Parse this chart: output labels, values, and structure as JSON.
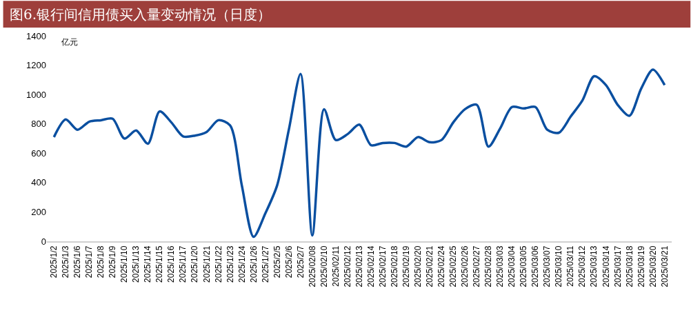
{
  "chart_data": {
    "type": "line",
    "title": "图6.银行间信用债买入量变动情况（日度）",
    "ylabel": "亿元",
    "categories": [
      "2025/1/2",
      "2025/1/3",
      "2025/1/6",
      "2025/1/7",
      "2025/1/8",
      "2025/1/9",
      "2025/1/10",
      "2025/1/13",
      "2025/1/14",
      "2025/1/15",
      "2025/1/16",
      "2025/1/17",
      "2025/1/20",
      "2025/1/21",
      "2025/1/22",
      "2025/1/23",
      "2025/1/24",
      "2025/1/26",
      "2025/1/27",
      "2025/2/5",
      "2025/2/6",
      "2025/2/7",
      "2025/02/08",
      "2025/02/10",
      "2025/02/11",
      "2025/02/12",
      "2025/02/13",
      "2025/02/14",
      "2025/02/17",
      "2025/02/18",
      "2025/02/19",
      "2025/02/20",
      "2025/02/21",
      "2025/02/24",
      "2025/02/25",
      "2025/02/26",
      "2025/02/27",
      "2025/02/28",
      "2025/03/03",
      "2025/03/04",
      "2025/03/05",
      "2025/03/06",
      "2025/03/07",
      "2025/03/10",
      "2025/03/11",
      "2025/03/12",
      "2025/03/13",
      "2025/03/14",
      "2025/03/17",
      "2025/03/18",
      "2025/03/19",
      "2025/03/20",
      "2025/03/21"
    ],
    "series": [
      {
        "color": "#0a4fa0",
        "values": [
          710,
          830,
          760,
          815,
          825,
          835,
          700,
          755,
          665,
          885,
          810,
          715,
          720,
          745,
          825,
          790,
          380,
          30,
          190,
          380,
          760,
          1140,
          40,
          900,
          690,
          730,
          795,
          655,
          670,
          670,
          645,
          710,
          675,
          690,
          810,
          900,
          930,
          645,
          770,
          915,
          905,
          915,
          760,
          740,
          850,
          960,
          1125,
          1065,
          930,
          855,
          1040,
          1170,
          1065
        ]
      }
    ],
    "ylim": [
      0,
      1400
    ],
    "yticks": [
      0,
      200,
      400,
      600,
      800,
      1000,
      1200,
      1400
    ],
    "grid": false,
    "marker": "none",
    "line_style": "solid"
  }
}
